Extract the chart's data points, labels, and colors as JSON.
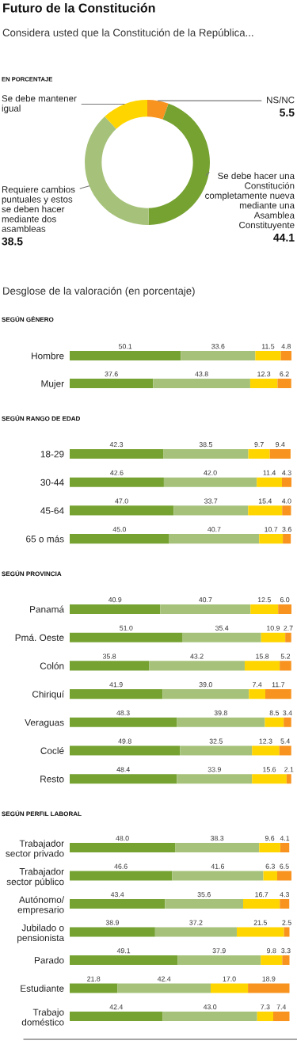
{
  "chart_data": [
    {
      "type": "donut",
      "title": "Futuro de la Constitución",
      "subtitle": "Considera usted que la Constitución de la República...",
      "annotations": [
        "EN PORCENTAJE"
      ],
      "categories": [
        "NS/NC",
        "Se debe hacer una Constitución completamente nueva mediante una Asamblea Constituyente",
        "Requiere cambios puntuales y estos se deben hacer mediante dos asambleas",
        "Se debe mantener igual"
      ],
      "values": [
        5.5,
        44.1,
        38.5,
        11.9
      ],
      "value_labels": [
        "5.5",
        "44.1",
        "38.5",
        null
      ],
      "colors": [
        "#f7931e",
        "#76a232",
        "#a6c27a",
        "#ffd500"
      ]
    },
    {
      "type": "bar",
      "orientation": "horizontal",
      "stacked": true,
      "title": "SEGÚN GÉNERO",
      "subtitle": "Desglose de la valoración (en porcentaje)",
      "categories": [
        "Hombre",
        "Mujer"
      ],
      "tick_labels": "y",
      "series": [
        {
          "color": "#76a232",
          "values": [
            50.1,
            37.6
          ],
          "value_labels": [
            "50.1",
            "37.6"
          ]
        },
        {
          "color": "#a6c27a",
          "values": [
            33.6,
            43.8
          ],
          "value_labels": [
            "33.6",
            "43.8"
          ]
        },
        {
          "color": "#ffd500",
          "values": [
            11.5,
            12.3
          ],
          "value_labels": [
            "11.5",
            "12.3"
          ]
        },
        {
          "color": "#f7931e",
          "values": [
            4.8,
            6.2
          ],
          "value_labels": [
            "4.8",
            "6.2"
          ]
        }
      ]
    },
    {
      "type": "bar",
      "orientation": "horizontal",
      "stacked": true,
      "title": "SEGÚN RANGO DE EDAD",
      "categories": [
        "18-29",
        "30-44",
        "45-64",
        "65 o más"
      ],
      "tick_labels": "y",
      "series": [
        {
          "color": "#76a232",
          "values": [
            42.3,
            42.6,
            47.0,
            45.0
          ],
          "value_labels": [
            "42.3",
            "42.6",
            "47.0",
            "45.0"
          ]
        },
        {
          "color": "#a6c27a",
          "values": [
            38.5,
            42.0,
            33.7,
            40.7
          ],
          "value_labels": [
            "38.5",
            "42.0",
            "33.7",
            "40.7"
          ]
        },
        {
          "color": "#ffd500",
          "values": [
            9.7,
            11.4,
            15.4,
            10.7
          ],
          "value_labels": [
            "9.7",
            "11.4",
            "15.4",
            "10.7"
          ]
        },
        {
          "color": "#f7931e",
          "values": [
            9.4,
            4.3,
            4.0,
            3.6
          ],
          "value_labels": [
            "9.4",
            "4.3",
            "4.0",
            "3.6"
          ]
        }
      ]
    },
    {
      "type": "bar",
      "orientation": "horizontal",
      "stacked": true,
      "title": "SEGÚN PROVINCIA",
      "categories": [
        "Panamá",
        "Pmá. Oeste",
        "Colón",
        "Chiriquí",
        "Veraguas",
        "Coclé",
        "Resto"
      ],
      "tick_labels": "y",
      "series": [
        {
          "color": "#76a232",
          "values": [
            40.9,
            51.0,
            35.8,
            41.9,
            48.3,
            49.8,
            48.4
          ],
          "value_labels": [
            "40.9",
            "51.0",
            "35.8",
            "41.9",
            "48.3",
            "49.8",
            "48.4"
          ]
        },
        {
          "color": "#a6c27a",
          "values": [
            40.7,
            35.4,
            43.2,
            39.0,
            39.8,
            32.5,
            33.9
          ],
          "value_labels": [
            "40.7",
            "35.4",
            "43.2",
            "39.0",
            "39.8",
            "32.5",
            "33.9"
          ]
        },
        {
          "color": "#ffd500",
          "values": [
            12.5,
            10.9,
            15.8,
            7.4,
            8.5,
            12.3,
            15.6
          ],
          "value_labels": [
            "12.5",
            "10.9",
            "15.8",
            "7.4",
            "8.5",
            "12.3",
            "15.6"
          ]
        },
        {
          "color": "#f7931e",
          "values": [
            6.0,
            2.7,
            5.2,
            11.7,
            3.4,
            5.4,
            2.1
          ],
          "value_labels": [
            "6.0",
            "2.7",
            "5.2",
            "11.7",
            "3.4",
            "5.4",
            "2.1"
          ]
        }
      ]
    },
    {
      "type": "bar",
      "orientation": "horizontal",
      "stacked": true,
      "title": "SEGÚN PERFIL LABORAL",
      "categories": [
        "Trabajador sector privado",
        "Trabajador sector público",
        "Autónomo/empresario",
        "Jubilado o pensionista",
        "Parado",
        "Estudiante",
        "Trabajo doméstico"
      ],
      "tick_labels": "y",
      "series": [
        {
          "color": "#76a232",
          "values": [
            48.0,
            46.6,
            43.4,
            38.9,
            49.1,
            21.8,
            42.4
          ],
          "value_labels": [
            "48.0",
            "46.6",
            "43.4",
            "38.9",
            "49.1",
            "21.8",
            "42.4"
          ]
        },
        {
          "color": "#a6c27a",
          "values": [
            38.3,
            41.6,
            35.6,
            37.2,
            37.9,
            42.4,
            43.0
          ],
          "value_labels": [
            "38.3",
            "41.6",
            "35.6",
            "37.2",
            "37.9",
            "42.4",
            "43.0"
          ]
        },
        {
          "color": "#ffd500",
          "values": [
            9.6,
            6.3,
            16.7,
            21.5,
            9.8,
            17.0,
            7.3
          ],
          "value_labels": [
            "9.6",
            "6.3",
            "16.7",
            "21.5",
            "9.8",
            "17.0",
            "7.3"
          ]
        },
        {
          "color": "#f7931e",
          "values": [
            4.1,
            6.5,
            4.3,
            2.5,
            3.3,
            18.9,
            7.4
          ],
          "value_labels": [
            "4.1",
            "6.5",
            "4.3",
            "2.5",
            "3.3",
            "18.9",
            "7.4"
          ]
        }
      ]
    }
  ]
}
